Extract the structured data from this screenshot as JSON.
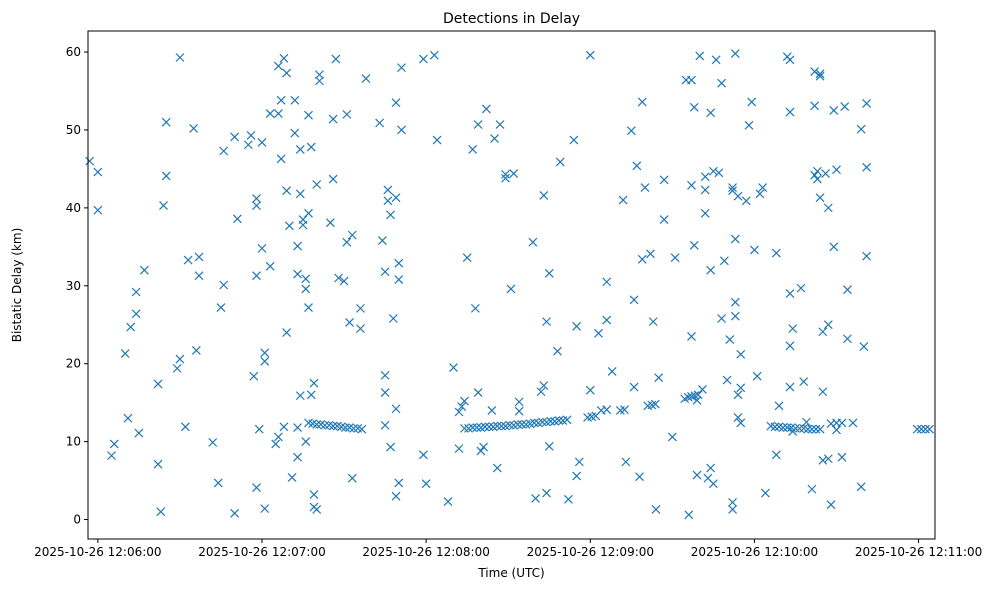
{
  "chart_data": {
    "type": "scatter",
    "title": "Detections in Delay",
    "xlabel": "Time (UTC)",
    "ylabel": "Bistatic Delay (km)",
    "marker": "x",
    "color": "#1f77b4",
    "x_unit": "seconds since 2025-10-26 12:06:00",
    "xlim": [
      -3.6,
      306
    ],
    "ylim": [
      -2.5,
      62.7
    ],
    "x_ticks": [
      0,
      60,
      120,
      180,
      240,
      300
    ],
    "x_tick_labels": [
      "2025-10-26 12:06:00",
      "2025-10-26 12:07:00",
      "2025-10-26 12:08:00",
      "2025-10-26 12:09:00",
      "2025-10-26 12:10:00",
      "2025-10-26 12:11:00"
    ],
    "y_ticks": [
      0,
      10,
      20,
      30,
      40,
      50,
      60
    ],
    "y_tick_labels": [
      "0",
      "10",
      "20",
      "30",
      "40",
      "50",
      "60"
    ],
    "track_points": [
      [
        77,
        12.4
      ],
      [
        78.5,
        12.3
      ],
      [
        80,
        12.2
      ],
      [
        81.5,
        12.2
      ],
      [
        83,
        12.1
      ],
      [
        84.5,
        12.1
      ],
      [
        86,
        12.0
      ],
      [
        87.5,
        12.0
      ],
      [
        89,
        11.9
      ],
      [
        90.5,
        11.8
      ],
      [
        92,
        11.8
      ],
      [
        93.5,
        11.7
      ],
      [
        95,
        11.7
      ],
      [
        96.5,
        11.6
      ],
      [
        134,
        11.7
      ],
      [
        135.5,
        11.7
      ],
      [
        137,
        11.8
      ],
      [
        138.5,
        11.8
      ],
      [
        140,
        11.8
      ],
      [
        141.5,
        11.9
      ],
      [
        143,
        11.9
      ],
      [
        144.5,
        11.9
      ],
      [
        146,
        12.0
      ],
      [
        147.5,
        12.0
      ],
      [
        149,
        12.0
      ],
      [
        150.5,
        12.1
      ],
      [
        152,
        12.1
      ],
      [
        153.5,
        12.2
      ],
      [
        155,
        12.2
      ],
      [
        156.5,
        12.2
      ],
      [
        158,
        12.3
      ],
      [
        159.5,
        12.4
      ],
      [
        161,
        12.4
      ],
      [
        162.5,
        12.5
      ],
      [
        164,
        12.5
      ],
      [
        165.5,
        12.6
      ],
      [
        167,
        12.6
      ],
      [
        168.5,
        12.7
      ],
      [
        170,
        12.7
      ],
      [
        171.5,
        12.8
      ],
      [
        179,
        13.1
      ],
      [
        180.5,
        13.2
      ],
      [
        182,
        13.3
      ],
      [
        191,
        14.0
      ],
      [
        192.5,
        14.1
      ],
      [
        201,
        14.6
      ],
      [
        202.5,
        14.7
      ],
      [
        203.8,
        14.8
      ],
      [
        214.5,
        15.5
      ],
      [
        215.8,
        15.7
      ],
      [
        217,
        15.8
      ],
      [
        218.2,
        15.9
      ],
      [
        219.4,
        16.0
      ],
      [
        246,
        12.0
      ],
      [
        247.5,
        11.9
      ],
      [
        249,
        11.9
      ],
      [
        250.5,
        11.8
      ],
      [
        252,
        11.8
      ],
      [
        253.5,
        11.8
      ],
      [
        255,
        11.7
      ],
      [
        256.5,
        11.7
      ],
      [
        258,
        11.7
      ],
      [
        259.5,
        11.6
      ],
      [
        261,
        11.6
      ],
      [
        262.5,
        11.6
      ],
      [
        264,
        11.6
      ],
      [
        268,
        12.3
      ],
      [
        270,
        12.4
      ],
      [
        272,
        12.4
      ],
      [
        276,
        12.4
      ],
      [
        299.5,
        11.6
      ],
      [
        301,
        11.6
      ],
      [
        302.5,
        11.6
      ],
      [
        304,
        11.6
      ]
    ],
    "scattered_points": [
      [
        -3,
        46.0
      ],
      [
        0,
        44.6
      ],
      [
        0,
        39.7
      ],
      [
        5,
        8.2
      ],
      [
        6,
        9.7
      ],
      [
        10,
        21.3
      ],
      [
        11,
        13.0
      ],
      [
        12,
        24.7
      ],
      [
        14,
        29.2
      ],
      [
        14,
        26.4
      ],
      [
        15,
        11.1
      ],
      [
        17,
        32.0
      ],
      [
        22,
        17.4
      ],
      [
        22,
        7.1
      ],
      [
        23,
        1.0
      ],
      [
        24,
        40.3
      ],
      [
        25,
        51.0
      ],
      [
        25,
        44.1
      ],
      [
        29,
        19.4
      ],
      [
        30,
        20.6
      ],
      [
        30,
        59.3
      ],
      [
        32,
        11.9
      ],
      [
        33,
        33.3
      ],
      [
        35,
        50.2
      ],
      [
        36,
        21.7
      ],
      [
        37,
        33.7
      ],
      [
        37,
        31.3
      ],
      [
        42,
        9.9
      ],
      [
        44,
        4.7
      ],
      [
        45,
        27.2
      ],
      [
        46,
        30.1
      ],
      [
        46,
        47.3
      ],
      [
        50,
        49.1
      ],
      [
        50,
        0.8
      ],
      [
        51,
        38.6
      ],
      [
        55,
        48.1
      ],
      [
        56,
        49.3
      ],
      [
        57,
        18.4
      ],
      [
        58,
        31.3
      ],
      [
        58,
        41.2
      ],
      [
        58,
        4.1
      ],
      [
        58,
        40.3
      ],
      [
        59,
        11.6
      ],
      [
        60,
        48.4
      ],
      [
        60,
        34.8
      ],
      [
        61,
        1.4
      ],
      [
        61,
        21.4
      ],
      [
        61,
        20.3
      ],
      [
        63,
        32.5
      ],
      [
        63,
        52.1
      ],
      [
        65,
        9.7
      ],
      [
        66,
        58.2
      ],
      [
        66,
        10.6
      ],
      [
        66,
        52.1
      ],
      [
        67,
        53.8
      ],
      [
        67,
        46.3
      ],
      [
        68,
        59.2
      ],
      [
        68,
        11.9
      ],
      [
        69,
        57.3
      ],
      [
        69,
        42.2
      ],
      [
        69,
        24.0
      ],
      [
        70,
        37.7
      ],
      [
        71,
        5.4
      ],
      [
        72,
        49.6
      ],
      [
        72,
        53.8
      ],
      [
        73,
        31.5
      ],
      [
        73,
        35.1
      ],
      [
        73,
        8.0
      ],
      [
        73,
        11.8
      ],
      [
        74,
        47.5
      ],
      [
        74,
        41.8
      ],
      [
        74,
        15.9
      ],
      [
        75,
        38.5
      ],
      [
        75,
        37.8
      ],
      [
        76,
        30.9
      ],
      [
        76,
        29.6
      ],
      [
        76,
        10.0
      ],
      [
        77,
        27.2
      ],
      [
        77,
        39.3
      ],
      [
        77,
        51.9
      ],
      [
        78,
        47.8
      ],
      [
        78,
        16.0
      ],
      [
        79,
        17.5
      ],
      [
        79,
        3.2
      ],
      [
        79,
        1.6
      ],
      [
        80,
        1.3
      ],
      [
        80,
        43.0
      ],
      [
        81,
        56.3
      ],
      [
        81,
        57.1
      ],
      [
        85,
        38.1
      ],
      [
        86,
        43.7
      ],
      [
        86,
        51.4
      ],
      [
        87,
        59.1
      ],
      [
        88,
        31.0
      ],
      [
        90,
        30.6
      ],
      [
        91,
        52.0
      ],
      [
        91,
        35.6
      ],
      [
        92,
        25.3
      ],
      [
        93,
        36.5
      ],
      [
        93,
        5.3
      ],
      [
        96,
        27.1
      ],
      [
        96,
        24.5
      ],
      [
        98,
        56.6
      ],
      [
        103,
        50.9
      ],
      [
        104,
        35.8
      ],
      [
        105,
        18.5
      ],
      [
        105,
        16.3
      ],
      [
        105,
        12.1
      ],
      [
        105,
        31.8
      ],
      [
        106,
        42.3
      ],
      [
        106,
        40.9
      ],
      [
        107,
        9.3
      ],
      [
        107,
        39.1
      ],
      [
        108,
        25.8
      ],
      [
        109,
        53.5
      ],
      [
        109,
        41.3
      ],
      [
        109,
        14.2
      ],
      [
        109,
        3.0
      ],
      [
        110,
        32.9
      ],
      [
        110,
        30.8
      ],
      [
        110,
        4.7
      ],
      [
        111,
        50.0
      ],
      [
        111,
        58.0
      ],
      [
        119,
        59.1
      ],
      [
        119,
        8.3
      ],
      [
        120,
        4.6
      ],
      [
        123,
        59.6
      ],
      [
        124,
        48.7
      ],
      [
        128,
        2.3
      ],
      [
        130,
        19.5
      ],
      [
        132,
        13.8
      ],
      [
        132,
        9.1
      ],
      [
        133,
        14.5
      ],
      [
        134,
        15.2
      ],
      [
        135,
        33.6
      ],
      [
        137,
        47.5
      ],
      [
        138,
        27.1
      ],
      [
        139,
        50.7
      ],
      [
        139,
        16.3
      ],
      [
        140,
        8.8
      ],
      [
        141,
        9.3
      ],
      [
        142,
        52.7
      ],
      [
        144,
        14.0
      ],
      [
        145,
        48.9
      ],
      [
        146,
        6.6
      ],
      [
        147,
        50.7
      ],
      [
        149,
        43.8
      ],
      [
        149,
        44.3
      ],
      [
        151,
        29.6
      ],
      [
        152,
        44.4
      ],
      [
        154,
        13.9
      ],
      [
        154,
        15.1
      ],
      [
        159,
        35.6
      ],
      [
        160,
        2.7
      ],
      [
        162,
        16.4
      ],
      [
        163,
        41.6
      ],
      [
        163,
        17.2
      ],
      [
        164,
        3.4
      ],
      [
        164,
        25.4
      ],
      [
        165,
        9.4
      ],
      [
        165,
        31.6
      ],
      [
        168,
        21.6
      ],
      [
        169,
        45.9
      ],
      [
        172,
        2.6
      ],
      [
        174,
        48.7
      ],
      [
        175,
        24.8
      ],
      [
        175,
        5.6
      ],
      [
        176,
        7.4
      ],
      [
        180,
        59.6
      ],
      [
        180,
        16.6
      ],
      [
        183,
        23.9
      ],
      [
        184,
        14.0
      ],
      [
        186,
        14.1
      ],
      [
        186,
        30.5
      ],
      [
        186,
        25.6
      ],
      [
        188,
        19.0
      ],
      [
        192,
        41.0
      ],
      [
        193,
        7.4
      ],
      [
        195,
        49.9
      ],
      [
        196,
        28.2
      ],
      [
        196,
        17.0
      ],
      [
        197,
        45.4
      ],
      [
        198,
        5.5
      ],
      [
        199,
        33.4
      ],
      [
        199,
        53.6
      ],
      [
        200,
        42.6
      ],
      [
        202,
        34.1
      ],
      [
        203,
        25.4
      ],
      [
        204,
        1.3
      ],
      [
        205,
        18.2
      ],
      [
        207,
        38.5
      ],
      [
        207,
        43.6
      ],
      [
        210,
        10.6
      ],
      [
        211,
        33.6
      ],
      [
        215,
        56.4
      ],
      [
        216,
        0.6
      ],
      [
        217,
        56.4
      ],
      [
        217,
        23.5
      ],
      [
        217,
        42.9
      ],
      [
        218,
        52.9
      ],
      [
        218,
        35.2
      ],
      [
        219,
        5.7
      ],
      [
        219,
        15.3
      ],
      [
        220,
        59.5
      ],
      [
        221,
        16.7
      ],
      [
        222,
        42.3
      ],
      [
        222,
        39.3
      ],
      [
        222,
        44.0
      ],
      [
        223,
        5.3
      ],
      [
        224,
        52.2
      ],
      [
        224,
        32.0
      ],
      [
        224,
        6.6
      ],
      [
        225,
        44.7
      ],
      [
        225,
        4.6
      ],
      [
        226,
        59.0
      ],
      [
        227,
        44.5
      ],
      [
        228,
        56.0
      ],
      [
        228,
        25.8
      ],
      [
        229,
        33.2
      ],
      [
        230,
        17.9
      ],
      [
        231,
        23.1
      ],
      [
        232,
        42.6
      ],
      [
        232,
        42.2
      ],
      [
        232,
        2.2
      ],
      [
        232,
        1.3
      ],
      [
        233,
        59.8
      ],
      [
        233,
        36.0
      ],
      [
        233,
        26.1
      ],
      [
        233,
        27.9
      ],
      [
        234,
        41.5
      ],
      [
        234,
        16.0
      ],
      [
        234,
        13.1
      ],
      [
        235,
        12.4
      ],
      [
        235,
        16.9
      ],
      [
        235,
        21.2
      ],
      [
        237,
        40.9
      ],
      [
        238,
        50.6
      ],
      [
        239,
        53.6
      ],
      [
        240,
        34.6
      ],
      [
        241,
        18.4
      ],
      [
        242,
        41.8
      ],
      [
        243,
        42.6
      ],
      [
        244,
        3.4
      ],
      [
        248,
        34.2
      ],
      [
        248,
        8.3
      ],
      [
        249,
        14.6
      ],
      [
        252,
        59.4
      ],
      [
        253,
        59.0
      ],
      [
        253,
        52.3
      ],
      [
        253,
        29.0
      ],
      [
        253,
        22.3
      ],
      [
        253,
        17.0
      ],
      [
        254,
        24.5
      ],
      [
        254,
        11.3
      ],
      [
        257,
        29.7
      ],
      [
        258,
        17.7
      ],
      [
        259,
        12.5
      ],
      [
        261,
        3.9
      ],
      [
        262,
        57.5
      ],
      [
        262,
        53.1
      ],
      [
        262,
        44.2
      ],
      [
        263,
        43.7
      ],
      [
        263,
        44.7
      ],
      [
        264,
        57.2
      ],
      [
        264,
        56.9
      ],
      [
        264,
        41.3
      ],
      [
        265,
        24.1
      ],
      [
        265,
        16.4
      ],
      [
        265,
        7.6
      ],
      [
        266,
        44.4
      ],
      [
        267,
        40.0
      ],
      [
        267,
        25.0
      ],
      [
        267,
        7.8
      ],
      [
        268,
        1.9
      ],
      [
        269,
        35.0
      ],
      [
        269,
        52.5
      ],
      [
        270,
        44.9
      ],
      [
        270,
        11.5
      ],
      [
        272,
        8.0
      ],
      [
        273,
        53.0
      ],
      [
        274,
        29.5
      ],
      [
        274,
        23.2
      ],
      [
        279,
        50.1
      ],
      [
        279,
        4.2
      ],
      [
        280,
        22.2
      ],
      [
        281,
        53.4
      ],
      [
        281,
        45.2
      ],
      [
        281,
        33.8
      ]
    ]
  }
}
